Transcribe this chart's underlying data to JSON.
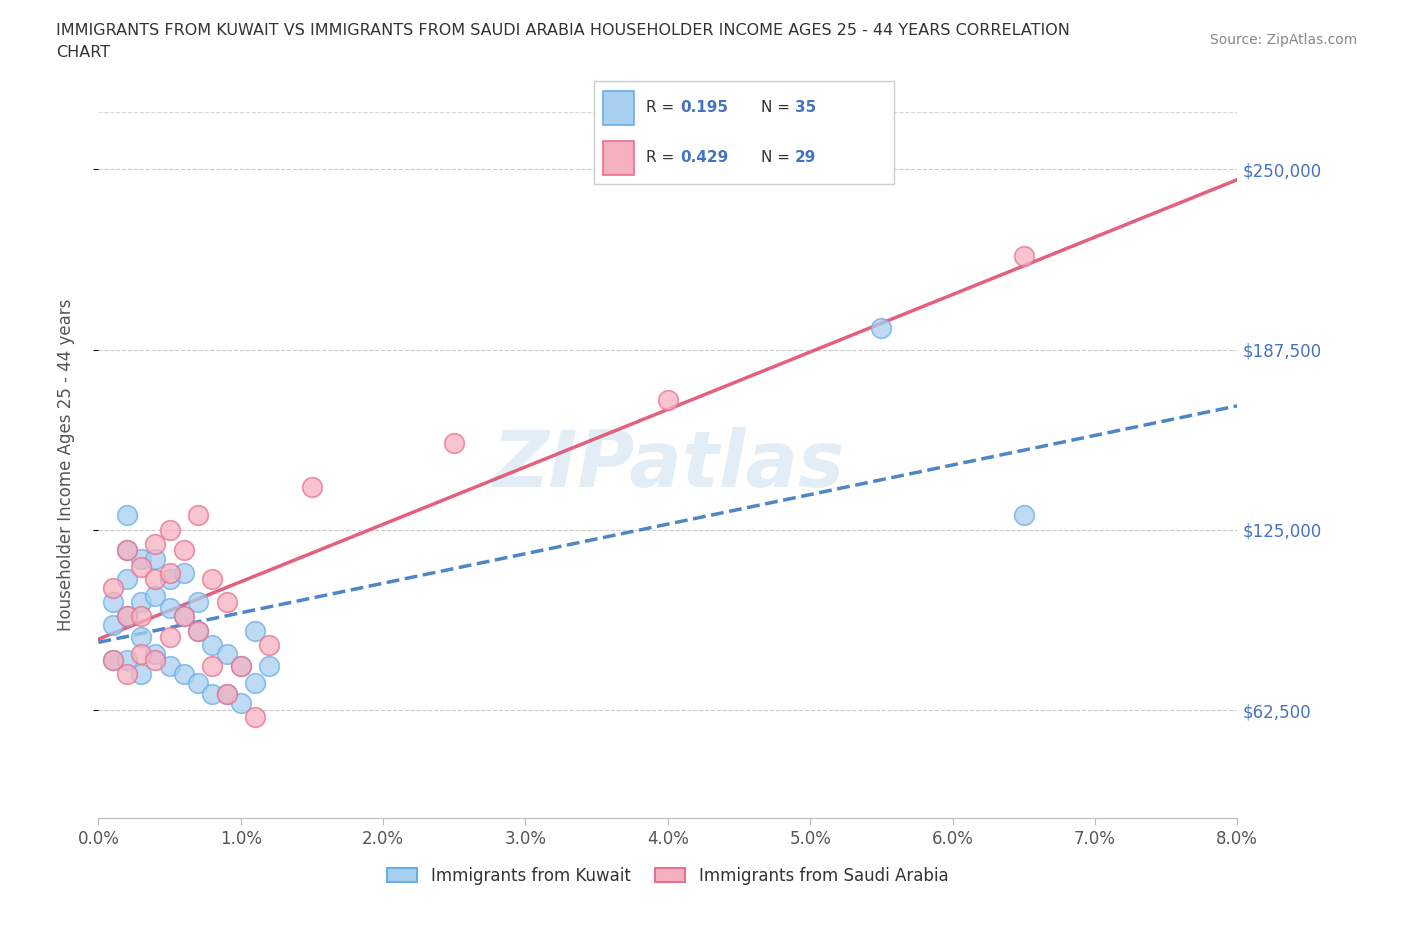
{
  "title_line1": "IMMIGRANTS FROM KUWAIT VS IMMIGRANTS FROM SAUDI ARABIA HOUSEHOLDER INCOME AGES 25 - 44 YEARS CORRELATION",
  "title_line2": "CHART",
  "source": "Source: ZipAtlas.com",
  "ylabel": "Householder Income Ages 25 - 44 years",
  "xlabel_ticks": [
    "0.0%",
    "1.0%",
    "2.0%",
    "3.0%",
    "4.0%",
    "5.0%",
    "6.0%",
    "7.0%",
    "8.0%"
  ],
  "ytick_labels": [
    "$62,500",
    "$125,000",
    "$187,500",
    "$250,000"
  ],
  "ytick_values": [
    62500,
    125000,
    187500,
    250000
  ],
  "xlim": [
    0.0,
    0.08
  ],
  "ylim": [
    25000,
    270000
  ],
  "kuwait_color": "#a8d0f0",
  "saudi_color": "#f5b0c0",
  "kuwait_edge": "#6aaee8",
  "saudi_edge": "#e87090",
  "trend_kuwait_color": "#3a7abf",
  "trend_saudi_color": "#e05070",
  "watermark": "ZIPatlas",
  "legend_label_kuwait": "Immigrants from Kuwait",
  "legend_label_saudi": "Immigrants from Saudi Arabia",
  "kuwait_x": [
    0.001,
    0.001,
    0.001,
    0.002,
    0.002,
    0.002,
    0.002,
    0.003,
    0.003,
    0.003,
    0.003,
    0.004,
    0.004,
    0.004,
    0.005,
    0.005,
    0.005,
    0.006,
    0.006,
    0.006,
    0.007,
    0.007,
    0.007,
    0.008,
    0.008,
    0.009,
    0.009,
    0.01,
    0.01,
    0.011,
    0.011,
    0.012,
    0.055,
    0.065,
    0.002
  ],
  "kuwait_y": [
    100000,
    92000,
    80000,
    130000,
    108000,
    95000,
    80000,
    115000,
    100000,
    88000,
    75000,
    115000,
    102000,
    82000,
    108000,
    98000,
    78000,
    110000,
    95000,
    75000,
    100000,
    90000,
    72000,
    85000,
    68000,
    82000,
    68000,
    78000,
    65000,
    90000,
    72000,
    78000,
    195000,
    130000,
    118000
  ],
  "saudi_x": [
    0.001,
    0.001,
    0.002,
    0.002,
    0.002,
    0.003,
    0.003,
    0.003,
    0.004,
    0.004,
    0.004,
    0.005,
    0.005,
    0.005,
    0.006,
    0.006,
    0.007,
    0.007,
    0.008,
    0.008,
    0.009,
    0.009,
    0.01,
    0.011,
    0.012,
    0.015,
    0.025,
    0.04,
    0.065
  ],
  "saudi_y": [
    105000,
    80000,
    118000,
    95000,
    75000,
    112000,
    95000,
    82000,
    120000,
    108000,
    80000,
    125000,
    110000,
    88000,
    118000,
    95000,
    130000,
    90000,
    108000,
    78000,
    100000,
    68000,
    78000,
    60000,
    85000,
    140000,
    155000,
    170000,
    220000
  ]
}
